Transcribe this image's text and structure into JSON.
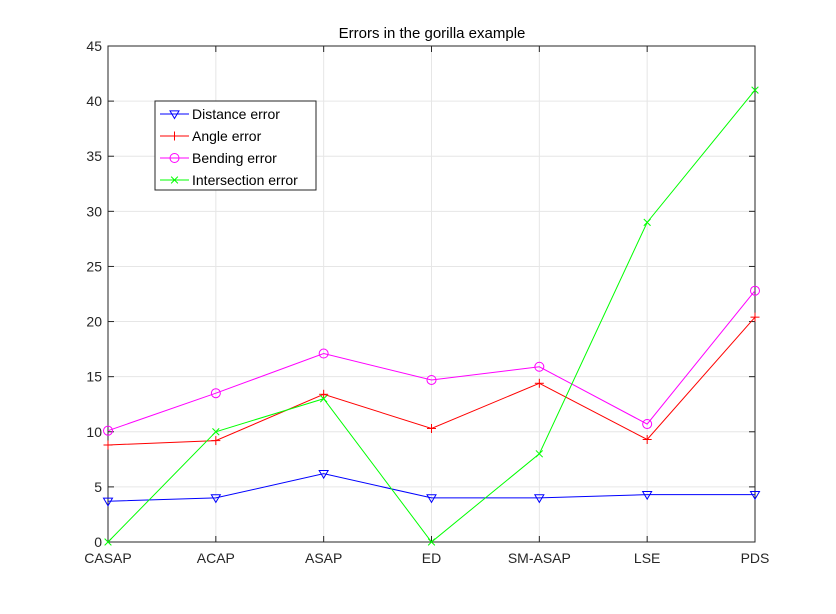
{
  "chart_data": {
    "type": "line",
    "title": "Errors in the gorilla example",
    "xlabel": "",
    "ylabel": "",
    "categories": [
      "CASAP",
      "ACAP",
      "ASAP",
      "ED",
      "SM-ASAP",
      "LSE",
      "PDS"
    ],
    "ylim": [
      0,
      45
    ],
    "yticks": [
      0,
      5,
      10,
      15,
      20,
      25,
      30,
      35,
      40,
      45
    ],
    "grid": true,
    "legend_position": "top-left",
    "series": [
      {
        "name": "Distance error",
        "color": "#0000ff",
        "marker": "triangle-down",
        "values": [
          3.7,
          4.0,
          6.2,
          4.0,
          4.0,
          4.3,
          4.3
        ]
      },
      {
        "name": "Angle error",
        "color": "#ff0000",
        "marker": "plus",
        "values": [
          8.8,
          9.2,
          13.4,
          10.3,
          14.4,
          9.3,
          20.4
        ]
      },
      {
        "name": "Bending error",
        "color": "#ff00ff",
        "marker": "circle",
        "values": [
          10.1,
          13.5,
          17.1,
          14.7,
          15.9,
          10.7,
          22.8
        ]
      },
      {
        "name": "Intersection error",
        "color": "#00ff00",
        "marker": "x",
        "values": [
          0.0,
          10.0,
          13.0,
          0.0,
          8.0,
          29.0,
          41.0
        ]
      }
    ]
  }
}
